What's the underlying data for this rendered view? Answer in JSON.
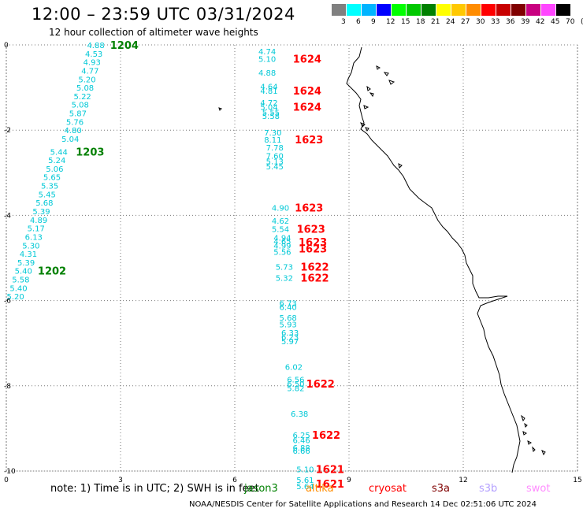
{
  "header": {
    "title": "12:00 – 23:59 UTC 03/31/2024",
    "subtitle": "12 hour collection of altimeter wave heights"
  },
  "scale": {
    "labels": [
      "3",
      "6",
      "9",
      "12",
      "15",
      "18",
      "21",
      "24",
      "27",
      "30",
      "33",
      "36",
      "39",
      "42",
      "45",
      "70",
      "(ft)"
    ],
    "colors": [
      "#808080",
      "#00ffff",
      "#00b4ff",
      "#0000ff",
      "#00ff00",
      "#00c800",
      "#008000",
      "#ffff00",
      "#ffc800",
      "#ff8c00",
      "#ff0000",
      "#c80000",
      "#800000",
      "#c80080",
      "#ff46ff",
      "#000000"
    ]
  },
  "axes": {
    "x_ticks": [
      "0",
      "3",
      "6",
      "9",
      "12",
      "15"
    ],
    "y_ticks": [
      "0",
      "-2",
      "-4",
      "-6",
      "-8",
      "-10"
    ],
    "xlim": [
      0,
      15
    ],
    "ylim": [
      -10,
      0
    ]
  },
  "tracks": [
    {
      "sat_color": "#008000",
      "points": [
        {
          "lon": 2.35,
          "lat": 0.0,
          "v": "4.88"
        },
        {
          "lon": 2.3,
          "lat": -0.2,
          "v": "4.53"
        },
        {
          "lon": 2.25,
          "lat": -0.4,
          "v": "4.93"
        },
        {
          "lon": 2.2,
          "lat": -0.6,
          "v": "4.77"
        },
        {
          "lon": 2.12,
          "lat": -0.8,
          "v": "5.20"
        },
        {
          "lon": 2.07,
          "lat": -1.0,
          "v": "5.08"
        },
        {
          "lon": 2.0,
          "lat": -1.2,
          "v": "5.22"
        },
        {
          "lon": 1.94,
          "lat": -1.4,
          "v": "5.08"
        },
        {
          "lon": 1.88,
          "lat": -1.6,
          "v": "5.87"
        },
        {
          "lon": 1.8,
          "lat": -1.8,
          "v": "5.76"
        },
        {
          "lon": 1.75,
          "lat": -2.0,
          "v": "4.80"
        },
        {
          "lon": 1.68,
          "lat": -2.2,
          "v": "5.04"
        },
        {
          "lon": 1.38,
          "lat": -2.5,
          "v": "5.44"
        },
        {
          "lon": 1.33,
          "lat": -2.7,
          "v": "5.24"
        },
        {
          "lon": 1.27,
          "lat": -2.9,
          "v": "5.06"
        },
        {
          "lon": 1.2,
          "lat": -3.1,
          "v": "5.65"
        },
        {
          "lon": 1.14,
          "lat": -3.3,
          "v": "5.35"
        },
        {
          "lon": 1.07,
          "lat": -3.5,
          "v": "5.45"
        },
        {
          "lon": 1.0,
          "lat": -3.7,
          "v": "5.68"
        },
        {
          "lon": 0.92,
          "lat": -3.9,
          "v": "5.39"
        },
        {
          "lon": 0.85,
          "lat": -4.1,
          "v": "4.89"
        },
        {
          "lon": 0.78,
          "lat": -4.3,
          "v": "5.17"
        },
        {
          "lon": 0.72,
          "lat": -4.5,
          "v": "6.13"
        },
        {
          "lon": 0.65,
          "lat": -4.7,
          "v": "5.30"
        },
        {
          "lon": 0.58,
          "lat": -4.9,
          "v": "4.31"
        },
        {
          "lon": 0.52,
          "lat": -5.1,
          "v": "5.39"
        },
        {
          "lon": 0.45,
          "lat": -5.3,
          "v": "5.40"
        },
        {
          "lon": 0.38,
          "lat": -5.5,
          "v": "5.58"
        },
        {
          "lon": 0.32,
          "lat": -5.7,
          "v": "5.40"
        },
        {
          "lon": 0.24,
          "lat": -5.9,
          "v": "5.20"
        }
      ],
      "labels": [
        {
          "lon": 3.1,
          "lat": 0.0,
          "t": "1204"
        },
        {
          "lon": 2.2,
          "lat": -2.5,
          "t": "1203"
        },
        {
          "lon": 1.2,
          "lat": -5.3,
          "t": "1202"
        }
      ]
    },
    {
      "sat_color": "#ff0000",
      "points": [
        {
          "lon": 6.85,
          "lat": -0.15,
          "v": "4.74"
        },
        {
          "lon": 6.85,
          "lat": -0.32,
          "v": "5.10"
        },
        {
          "lon": 6.85,
          "lat": -0.65,
          "v": "4.88"
        },
        {
          "lon": 6.9,
          "lat": -0.97,
          "v": "4.64"
        },
        {
          "lon": 6.9,
          "lat": -1.07,
          "v": "4.81"
        },
        {
          "lon": 6.9,
          "lat": -1.35,
          "v": "4.72"
        },
        {
          "lon": 6.9,
          "lat": -1.45,
          "v": "5.04"
        },
        {
          "lon": 6.95,
          "lat": -1.58,
          "v": "5.55"
        },
        {
          "lon": 6.95,
          "lat": -1.66,
          "v": "5.58"
        },
        {
          "lon": 7.0,
          "lat": -2.05,
          "v": "7.30"
        },
        {
          "lon": 7.0,
          "lat": -2.22,
          "v": "8.11"
        },
        {
          "lon": 7.05,
          "lat": -2.4,
          "v": "7.78"
        },
        {
          "lon": 7.05,
          "lat": -2.6,
          "v": "7.60"
        },
        {
          "lon": 7.05,
          "lat": -2.73,
          "v": "5.13"
        },
        {
          "lon": 7.05,
          "lat": -2.85,
          "v": "5.45"
        },
        {
          "lon": 7.2,
          "lat": -3.82,
          "v": "4.90"
        },
        {
          "lon": 7.2,
          "lat": -4.12,
          "v": "4.62"
        },
        {
          "lon": 7.2,
          "lat": -4.32,
          "v": "5.54"
        },
        {
          "lon": 7.25,
          "lat": -4.52,
          "v": "4.94"
        },
        {
          "lon": 7.25,
          "lat": -4.6,
          "v": "4.65"
        },
        {
          "lon": 7.25,
          "lat": -4.7,
          "v": "4.99"
        },
        {
          "lon": 7.25,
          "lat": -4.85,
          "v": "5.56"
        },
        {
          "lon": 7.3,
          "lat": -5.2,
          "v": "5.73"
        },
        {
          "lon": 7.3,
          "lat": -5.46,
          "v": "5.32"
        },
        {
          "lon": 7.4,
          "lat": -6.05,
          "v": "6.73"
        },
        {
          "lon": 7.4,
          "lat": -6.15,
          "v": "6.40"
        },
        {
          "lon": 7.4,
          "lat": -6.4,
          "v": "5.68"
        },
        {
          "lon": 7.4,
          "lat": -6.55,
          "v": "5.93"
        },
        {
          "lon": 7.45,
          "lat": -6.75,
          "v": "6.33"
        },
        {
          "lon": 7.45,
          "lat": -6.85,
          "v": "6.23"
        },
        {
          "lon": 7.45,
          "lat": -6.95,
          "v": "5.97"
        },
        {
          "lon": 7.55,
          "lat": -7.55,
          "v": "6.02"
        },
        {
          "lon": 7.6,
          "lat": -7.85,
          "v": "6.56"
        },
        {
          "lon": 7.6,
          "lat": -7.95,
          "v": "6.50"
        },
        {
          "lon": 7.6,
          "lat": -8.05,
          "v": "5.82"
        },
        {
          "lon": 7.7,
          "lat": -8.65,
          "v": "6.38"
        },
        {
          "lon": 7.75,
          "lat": -9.15,
          "v": "6.25"
        },
        {
          "lon": 7.75,
          "lat": -9.27,
          "v": "6.46"
        },
        {
          "lon": 7.75,
          "lat": -9.45,
          "v": "6.88"
        },
        {
          "lon": 7.75,
          "lat": -9.52,
          "v": "6.66"
        },
        {
          "lon": 7.85,
          "lat": -9.95,
          "v": "5.10"
        },
        {
          "lon": 7.85,
          "lat": -10.2,
          "v": "5.61"
        },
        {
          "lon": 7.85,
          "lat": -10.35,
          "v": "5.64"
        }
      ],
      "labels": [
        {
          "lon": 7.9,
          "lat": -0.32,
          "t": "1624"
        },
        {
          "lon": 7.9,
          "lat": -1.07,
          "t": "1624"
        },
        {
          "lon": 7.9,
          "lat": -1.45,
          "t": "1624"
        },
        {
          "lon": 7.95,
          "lat": -2.22,
          "t": "1623"
        },
        {
          "lon": 7.95,
          "lat": -3.82,
          "t": "1623"
        },
        {
          "lon": 8.0,
          "lat": -4.32,
          "t": "1623"
        },
        {
          "lon": 8.05,
          "lat": -4.62,
          "t": "1623"
        },
        {
          "lon": 8.05,
          "lat": -4.78,
          "t": "1623"
        },
        {
          "lon": 8.1,
          "lat": -5.2,
          "t": "1622"
        },
        {
          "lon": 8.1,
          "lat": -5.46,
          "t": "1622"
        },
        {
          "lon": 8.25,
          "lat": -7.95,
          "t": "1622"
        },
        {
          "lon": 8.4,
          "lat": -9.15,
          "t": "1622"
        },
        {
          "lon": 8.5,
          "lat": -9.95,
          "t": "1621"
        },
        {
          "lon": 8.5,
          "lat": -10.3,
          "t": "1621"
        }
      ]
    }
  ],
  "footer": {
    "note": "note:  1) Time is in UTC;  2) SWH is in feet",
    "satellites": [
      {
        "name": "jason3",
        "color": "#008000"
      },
      {
        "name": "altika",
        "color": "#ff8c00"
      },
      {
        "name": "cryosat",
        "color": "#ff0000"
      },
      {
        "name": "s3a",
        "color": "#800000"
      },
      {
        "name": "s3b",
        "color": "#b4a0ff"
      },
      {
        "name": "swot",
        "color": "#ff8cff"
      }
    ],
    "credit": "NOAA/NESDIS Center for Satellite Applications and Research    14 Dec 02:51:06 UTC 2024"
  }
}
